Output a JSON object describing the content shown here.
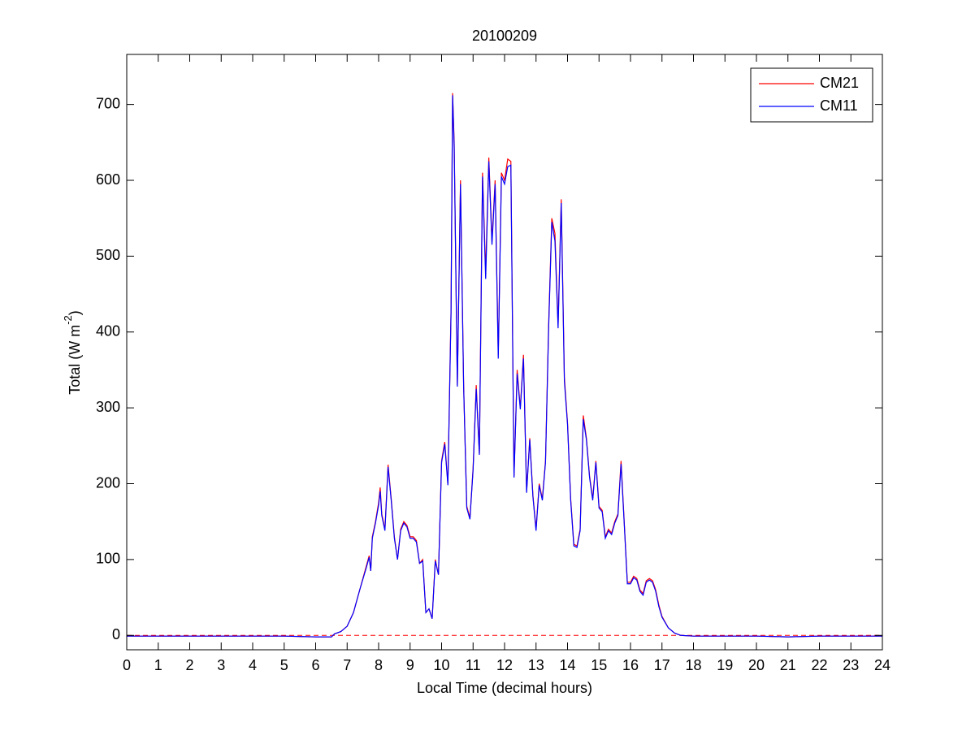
{
  "chart_data": {
    "type": "line",
    "title": "20100209",
    "xlabel": "Local Time (decimal hours)",
    "ylabel": [
      "Total (W m",
      "-2",
      ")"
    ],
    "x": [
      0,
      1,
      2,
      3,
      4,
      5,
      6.0,
      6.5,
      6.6,
      6.8,
      7.0,
      7.2,
      7.4,
      7.6,
      7.7,
      7.75,
      7.8,
      7.9,
      8.0,
      8.05,
      8.1,
      8.2,
      8.3,
      8.4,
      8.5,
      8.6,
      8.7,
      8.8,
      8.9,
      9.0,
      9.1,
      9.2,
      9.3,
      9.4,
      9.5,
      9.6,
      9.7,
      9.8,
      9.9,
      10.0,
      10.1,
      10.2,
      10.3,
      10.35,
      10.4,
      10.5,
      10.6,
      10.7,
      10.8,
      10.9,
      11.0,
      11.1,
      11.2,
      11.3,
      11.4,
      11.5,
      11.6,
      11.7,
      11.8,
      11.9,
      12.0,
      12.1,
      12.2,
      12.3,
      12.4,
      12.5,
      12.6,
      12.7,
      12.8,
      12.9,
      13.0,
      13.1,
      13.2,
      13.3,
      13.4,
      13.5,
      13.6,
      13.7,
      13.8,
      13.9,
      14.0,
      14.1,
      14.2,
      14.3,
      14.4,
      14.5,
      14.6,
      14.7,
      14.8,
      14.9,
      15.0,
      15.1,
      15.2,
      15.3,
      15.4,
      15.5,
      15.6,
      15.7,
      15.8,
      15.9,
      16.0,
      16.1,
      16.2,
      16.3,
      16.4,
      16.5,
      16.6,
      16.7,
      16.8,
      16.9,
      17.0,
      17.2,
      17.4,
      17.6,
      18,
      19,
      20,
      21,
      22,
      23,
      24
    ],
    "series": [
      {
        "name": "CM21",
        "color": "#ff0000",
        "values": [
          -1,
          -1,
          -1,
          -1,
          -1,
          -1,
          -2,
          -2,
          2,
          5,
          12,
          30,
          60,
          90,
          105,
          85,
          130,
          150,
          175,
          195,
          160,
          140,
          225,
          180,
          130,
          100,
          140,
          150,
          145,
          130,
          130,
          125,
          95,
          100,
          30,
          35,
          22,
          100,
          80,
          230,
          255,
          200,
          430,
          715,
          650,
          330,
          600,
          330,
          170,
          155,
          220,
          330,
          240,
          610,
          480,
          630,
          520,
          600,
          370,
          610,
          600,
          628,
          625,
          210,
          350,
          300,
          370,
          190,
          260,
          185,
          140,
          200,
          180,
          230,
          410,
          550,
          530,
          410,
          575,
          340,
          280,
          180,
          120,
          118,
          140,
          290,
          260,
          210,
          180,
          230,
          170,
          165,
          130,
          140,
          135,
          150,
          160,
          230,
          150,
          70,
          70,
          78,
          75,
          60,
          55,
          72,
          75,
          72,
          60,
          40,
          25,
          10,
          3,
          0,
          -1,
          -1,
          -1,
          -2,
          -1,
          -1,
          -1
        ]
      },
      {
        "name": "CM11",
        "color": "#0000ff",
        "values": [
          -1,
          -1,
          -1,
          -1,
          -1,
          -1,
          -2,
          -2,
          2,
          5,
          12,
          30,
          60,
          88,
          103,
          85,
          128,
          148,
          172,
          190,
          158,
          138,
          222,
          178,
          128,
          100,
          138,
          148,
          143,
          128,
          128,
          123,
          95,
          98,
          30,
          35,
          22,
          98,
          80,
          228,
          252,
          198,
          425,
          712,
          645,
          328,
          595,
          328,
          168,
          153,
          218,
          325,
          238,
          605,
          470,
          625,
          515,
          595,
          365,
          605,
          595,
          618,
          620,
          208,
          345,
          298,
          365,
          188,
          258,
          183,
          138,
          198,
          178,
          228,
          405,
          545,
          520,
          405,
          570,
          335,
          278,
          178,
          118,
          116,
          138,
          285,
          258,
          208,
          178,
          228,
          168,
          163,
          128,
          138,
          133,
          148,
          158,
          226,
          148,
          68,
          68,
          76,
          73,
          58,
          53,
          70,
          73,
          70,
          58,
          38,
          24,
          10,
          3,
          0,
          -1,
          -1,
          -1,
          -2,
          -1,
          -1,
          -1
        ]
      }
    ],
    "reference_line": {
      "value": 0,
      "color": "#ff0000",
      "dashed": true
    },
    "xlim": [
      0,
      24
    ],
    "xticks": [
      0,
      1,
      2,
      3,
      4,
      5,
      6,
      7,
      8,
      9,
      10,
      11,
      12,
      13,
      14,
      15,
      16,
      17,
      18,
      19,
      20,
      21,
      22,
      23,
      24
    ],
    "ylim": [
      -19,
      766
    ],
    "yticks": [
      0,
      100,
      200,
      300,
      400,
      500,
      600,
      700
    ],
    "grid": false,
    "legend": "northeast"
  }
}
